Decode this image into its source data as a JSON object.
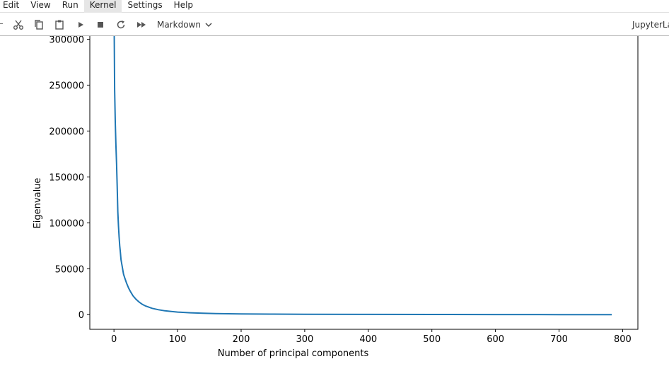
{
  "menu": {
    "items": [
      {
        "label": "Edit",
        "active": false
      },
      {
        "label": "View",
        "active": false
      },
      {
        "label": "Run",
        "active": false
      },
      {
        "label": "Kernel",
        "active": true
      },
      {
        "label": "Settings",
        "active": false
      },
      {
        "label": "Help",
        "active": false
      }
    ]
  },
  "toolbar": {
    "icons": [
      "cut-icon",
      "copy-icon",
      "paste-icon",
      "run-icon",
      "stop-icon",
      "restart-icon",
      "run-all-icon"
    ],
    "cell_type": "Markdown",
    "kernel_label": "JupyterLa"
  },
  "chart_data": {
    "type": "line",
    "xlabel": "Number of principal components",
    "ylabel": "Eigenvalue",
    "xlim": [
      -38,
      824
    ],
    "ylim": [
      -16000,
      305000
    ],
    "xticks": [
      0,
      100,
      200,
      300,
      400,
      500,
      600,
      700,
      800
    ],
    "yticks": [
      0,
      50000,
      100000,
      150000,
      200000,
      250000,
      300000
    ],
    "xtick_labels": [
      "0",
      "100",
      "200",
      "300",
      "400",
      "500",
      "600",
      "700",
      "800"
    ],
    "ytick_labels": [
      "0",
      "50000",
      "100000",
      "150000",
      "200000",
      "250000",
      "300000"
    ],
    "color": "#1f77b4",
    "series": [
      {
        "x": [
          0,
          1,
          2,
          3,
          4,
          5,
          6,
          7,
          8,
          9,
          10,
          11,
          12,
          13,
          14,
          15,
          17,
          20,
          23,
          26,
          30,
          35,
          40,
          45,
          50,
          60,
          70,
          80,
          90,
          100,
          120,
          140,
          160,
          200,
          250,
          300,
          400,
          500,
          600,
          700,
          783
        ],
        "y": [
          340000,
          245000,
          210000,
          185000,
          165000,
          140000,
          112000,
          97000,
          85000,
          75000,
          68000,
          60000,
          56000,
          52000,
          48000,
          44000,
          40000,
          34000,
          29000,
          25000,
          20500,
          16500,
          13500,
          11000,
          9300,
          6900,
          5300,
          4200,
          3400,
          2800,
          2000,
          1500,
          1150,
          800,
          550,
          380,
          220,
          130,
          80,
          40,
          15
        ]
      }
    ]
  }
}
